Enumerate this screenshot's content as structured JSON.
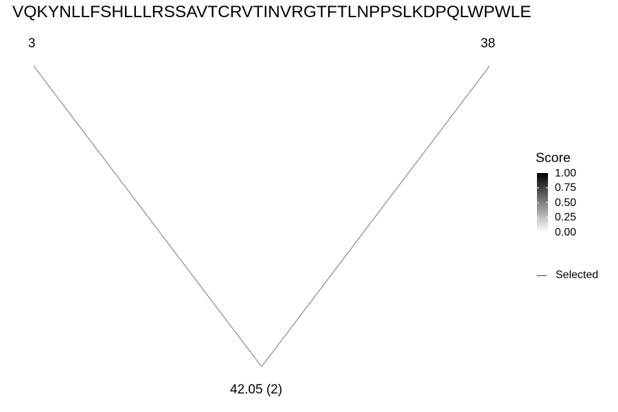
{
  "sequence": "VQKYNLLFSHLLLRSSAVTCRVTINVRGTFTLNPPSLKDPQLWPWLE",
  "chart_data": {
    "type": "line",
    "vertices": {
      "left": "3",
      "right": "38",
      "bottom": "42.05 (2)"
    },
    "line_color": "#707070",
    "legend": {
      "score": {
        "title": "Score",
        "ticks": [
          "1.00",
          "0.75",
          "0.50",
          "0.25",
          "0.00"
        ],
        "gradient_from": "#000000",
        "gradient_to": "#ffffff"
      },
      "selected": {
        "label": "Selected",
        "line_color": "#333333"
      }
    },
    "grid": false,
    "legend_position": "right"
  }
}
